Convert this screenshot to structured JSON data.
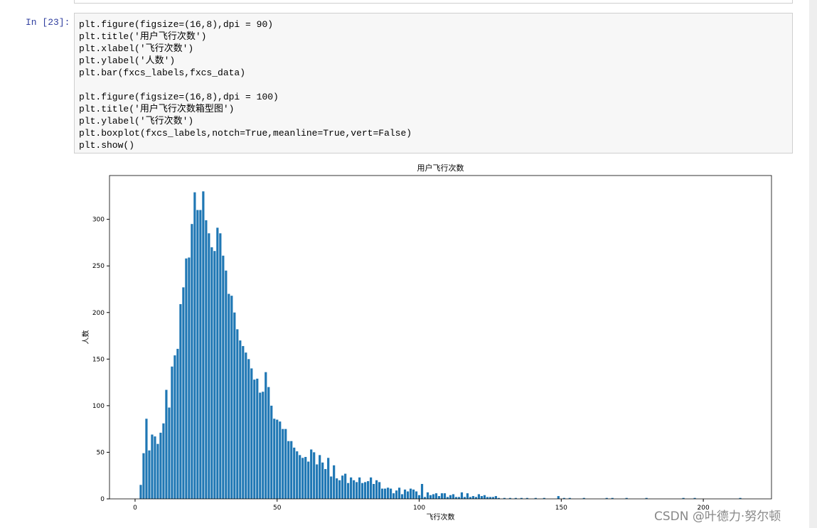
{
  "prompt": "In  [23]:",
  "code": {
    "block1": [
      "plt.figure(figsize=(16,8),dpi = 90)",
      "plt.title('用户飞行次数')",
      "plt.xlabel('飞行次数')",
      "plt.ylabel('人数')",
      "plt.bar(fxcs_labels,fxcs_data)"
    ],
    "block2": [
      "plt.figure(figsize=(16,8),dpi = 100)",
      "plt.title('用户飞行次数箱型图')",
      "plt.ylabel('飞行次数')",
      "plt.boxplot(fxcs_labels,notch=True,meanline=True,vert=False)",
      "plt.show()"
    ]
  },
  "watermark": "CSDN @叶德力·努尔顿",
  "chart_data": {
    "type": "bar",
    "title": "用户飞行次数",
    "x_label": "飞行次数",
    "y_label": "人数",
    "color": "#1f77b4",
    "x": [
      2,
      3,
      4,
      5,
      6,
      7,
      8,
      9,
      10,
      11,
      12,
      13,
      14,
      15,
      16,
      17,
      18,
      19,
      20,
      21,
      22,
      23,
      24,
      25,
      26,
      27,
      28,
      29,
      30,
      31,
      32,
      33,
      34,
      35,
      36,
      37,
      38,
      39,
      40,
      41,
      42,
      43,
      44,
      45,
      46,
      47,
      48,
      49,
      50,
      51,
      52,
      53,
      54,
      55,
      56,
      57,
      58,
      59,
      60,
      61,
      62,
      63,
      64,
      65,
      66,
      67,
      68,
      69,
      70,
      71,
      72,
      73,
      74,
      75,
      76,
      77,
      78,
      79,
      80,
      81,
      82,
      83,
      84,
      85,
      86,
      87,
      88,
      89,
      90,
      91,
      92,
      93,
      94,
      95,
      96,
      97,
      98,
      99,
      100,
      101,
      102,
      103,
      104,
      105,
      106,
      107,
      108,
      109,
      110,
      111,
      112,
      113,
      114,
      115,
      116,
      117,
      118,
      119,
      120,
      121,
      122,
      123,
      124,
      125,
      126,
      127,
      128,
      130,
      132,
      134,
      136,
      138,
      141,
      144,
      149,
      151,
      153,
      158,
      166,
      168,
      173,
      180,
      193,
      197,
      213
    ],
    "values": [
      15,
      49,
      86,
      52,
      69,
      67,
      59,
      71,
      81,
      117,
      98,
      142,
      154,
      161,
      209,
      227,
      258,
      259,
      295,
      329,
      310,
      310,
      330,
      299,
      285,
      270,
      266,
      291,
      285,
      261,
      245,
      220,
      218,
      200,
      182,
      170,
      164,
      157,
      150,
      140,
      128,
      129,
      114,
      115,
      136,
      120,
      100,
      86,
      85,
      83,
      75,
      75,
      62,
      62,
      55,
      51,
      47,
      44,
      45,
      40,
      53,
      50,
      37,
      47,
      39,
      32,
      44,
      24,
      36,
      22,
      20,
      25,
      27,
      17,
      23,
      20,
      18,
      23,
      17,
      18,
      19,
      23,
      16,
      20,
      18,
      11,
      11,
      12,
      11,
      6,
      9,
      12,
      5,
      10,
      8,
      11,
      10,
      8,
      4,
      16,
      2,
      7,
      4,
      5,
      6,
      3,
      6,
      6,
      2,
      4,
      5,
      2,
      2,
      7,
      2,
      6,
      2,
      3,
      2,
      5,
      3,
      4,
      2,
      2,
      2,
      3,
      1,
      1,
      1,
      1,
      1,
      1,
      1,
      1,
      3,
      1,
      1,
      1,
      1,
      1,
      1,
      1,
      1,
      1,
      1
    ],
    "xlim": [
      -9,
      224
    ],
    "ylim": [
      0,
      347
    ],
    "xticks": [
      0,
      50,
      100,
      150,
      200
    ],
    "yticks": [
      0,
      50,
      100,
      150,
      200,
      250,
      300
    ]
  }
}
